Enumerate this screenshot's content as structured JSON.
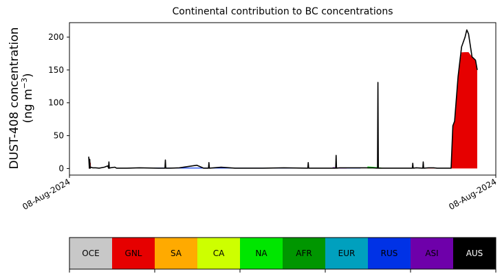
{
  "chart_data": {
    "type": "area",
    "title": "Continental contribution to BC concentrations",
    "ylabel_line1": "DUST-408 concentration",
    "ylabel_line2_prefix": "(ng m",
    "ylabel_line2_exp": "−3",
    "ylabel_line2_suffix": ")",
    "xlabel": "",
    "x_tick_labels": [
      "08-Aug-2024",
      "08-Aug-2024"
    ],
    "y_ticks": [
      0,
      50,
      100,
      150,
      200
    ],
    "ylim": [
      -10,
      222
    ],
    "xlim": [
      0,
      1
    ],
    "grid": false,
    "total_series": {
      "name": "",
      "color": "#000000",
      "points": [
        [
          0.0,
          18
        ],
        [
          0.003,
          14
        ],
        [
          0.006,
          2
        ],
        [
          0.012,
          1
        ],
        [
          0.02,
          1
        ],
        [
          0.03,
          0.5
        ],
        [
          0.045,
          2
        ],
        [
          0.05,
          3
        ],
        [
          0.055,
          4
        ],
        [
          0.058,
          10
        ],
        [
          0.062,
          1
        ],
        [
          0.075,
          2
        ],
        [
          0.08,
          0.5
        ],
        [
          0.11,
          0.5
        ],
        [
          0.145,
          1
        ],
        [
          0.2,
          0.5
        ],
        [
          0.22,
          13
        ],
        [
          0.23,
          0.5
        ],
        [
          0.26,
          1
        ],
        [
          0.31,
          5
        ],
        [
          0.33,
          0.5
        ],
        [
          0.345,
          9
        ],
        [
          0.38,
          2
        ],
        [
          0.42,
          0.5
        ],
        [
          0.5,
          0.5
        ],
        [
          0.56,
          1
        ],
        [
          0.63,
          9
        ],
        [
          0.66,
          0.5
        ],
        [
          0.71,
          20
        ],
        [
          0.72,
          1
        ],
        [
          0.75,
          1
        ],
        [
          0.8,
          1
        ],
        [
          0.815,
          1
        ],
        [
          0.83,
          131
        ],
        [
          0.84,
          0.5
        ],
        [
          0.86,
          0.5
        ],
        [
          0.9,
          0.5
        ],
        [
          0.93,
          8
        ],
        [
          0.94,
          1
        ],
        [
          0.96,
          10
        ],
        [
          0.975,
          1
        ],
        [
          0.99,
          1
        ],
        [
          1.0,
          0.5
        ],
        [
          1.04,
          0.5
        ],
        [
          1.045,
          65
        ],
        [
          1.05,
          72
        ],
        [
          1.06,
          140
        ],
        [
          1.07,
          185
        ],
        [
          1.08,
          200
        ],
        [
          1.085,
          211
        ],
        [
          1.09,
          205
        ],
        [
          1.1,
          170
        ],
        [
          1.11,
          165
        ],
        [
          1.115,
          150
        ]
      ]
    },
    "contributions": [
      {
        "region": "GNL",
        "x_range": [
          0.0,
          0.006
        ],
        "peak": 16
      },
      {
        "region": "GNL",
        "x_range": [
          1.04,
          1.115
        ],
        "peak": 175
      },
      {
        "region": "RUS",
        "x_range": [
          0.18,
          0.78
        ],
        "peak": 1.5
      },
      {
        "region": "ASI",
        "x_range": [
          0.7,
          0.74
        ],
        "peak": 2
      },
      {
        "region": "NA",
        "x_range": [
          0.8,
          0.84
        ],
        "peak": 3
      },
      {
        "region": "CA",
        "x_range": [
          0.82,
          0.86
        ],
        "peak": 1.5
      },
      {
        "region": "GNL",
        "x_range": [
          0.95,
          1.0
        ],
        "peak": 1
      }
    ],
    "colorbar": {
      "categories": [
        {
          "label": "OCE",
          "color": "#c8c8c8"
        },
        {
          "label": "GNL",
          "color": "#e60000"
        },
        {
          "label": "SA",
          "color": "#ffaa00"
        },
        {
          "label": "CA",
          "color": "#cdff00"
        },
        {
          "label": "NA",
          "color": "#00e600"
        },
        {
          "label": "AFR",
          "color": "#009600"
        },
        {
          "label": "EUR",
          "color": "#00a0be"
        },
        {
          "label": "RUS",
          "color": "#0032e6"
        },
        {
          "label": "ASI",
          "color": "#6e00aa"
        },
        {
          "label": "AUS",
          "color": "#000000"
        }
      ]
    }
  }
}
